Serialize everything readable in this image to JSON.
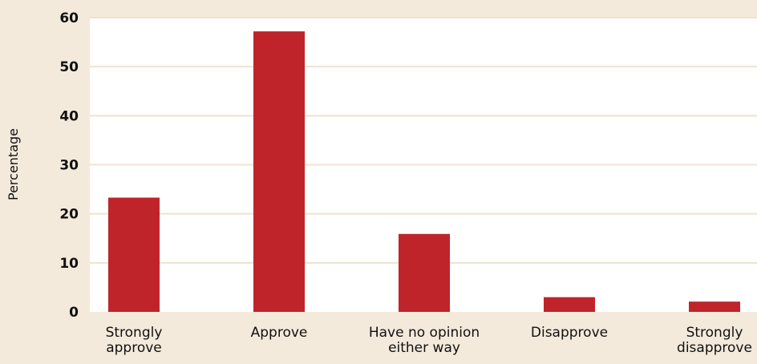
{
  "chart_data": {
    "type": "bar",
    "ylabel": "Percentage",
    "xlabel": "",
    "ylim": [
      0,
      60
    ],
    "yticks": [
      0,
      10,
      20,
      30,
      40,
      50,
      60
    ],
    "grid": true,
    "categories": [
      [
        "Strongly",
        "approve"
      ],
      [
        "Approve"
      ],
      [
        "Have no opinion",
        "either way"
      ],
      [
        "Disapprove"
      ],
      [
        "Strongly",
        "disapprove"
      ]
    ],
    "values": [
      23.3,
      57.2,
      15.9,
      3.0,
      2.1
    ],
    "colors": {
      "bar": "#c0242b",
      "plot_background": "#ffffff",
      "page_background": "#f3eadb",
      "grid": "#efe3cf"
    }
  }
}
